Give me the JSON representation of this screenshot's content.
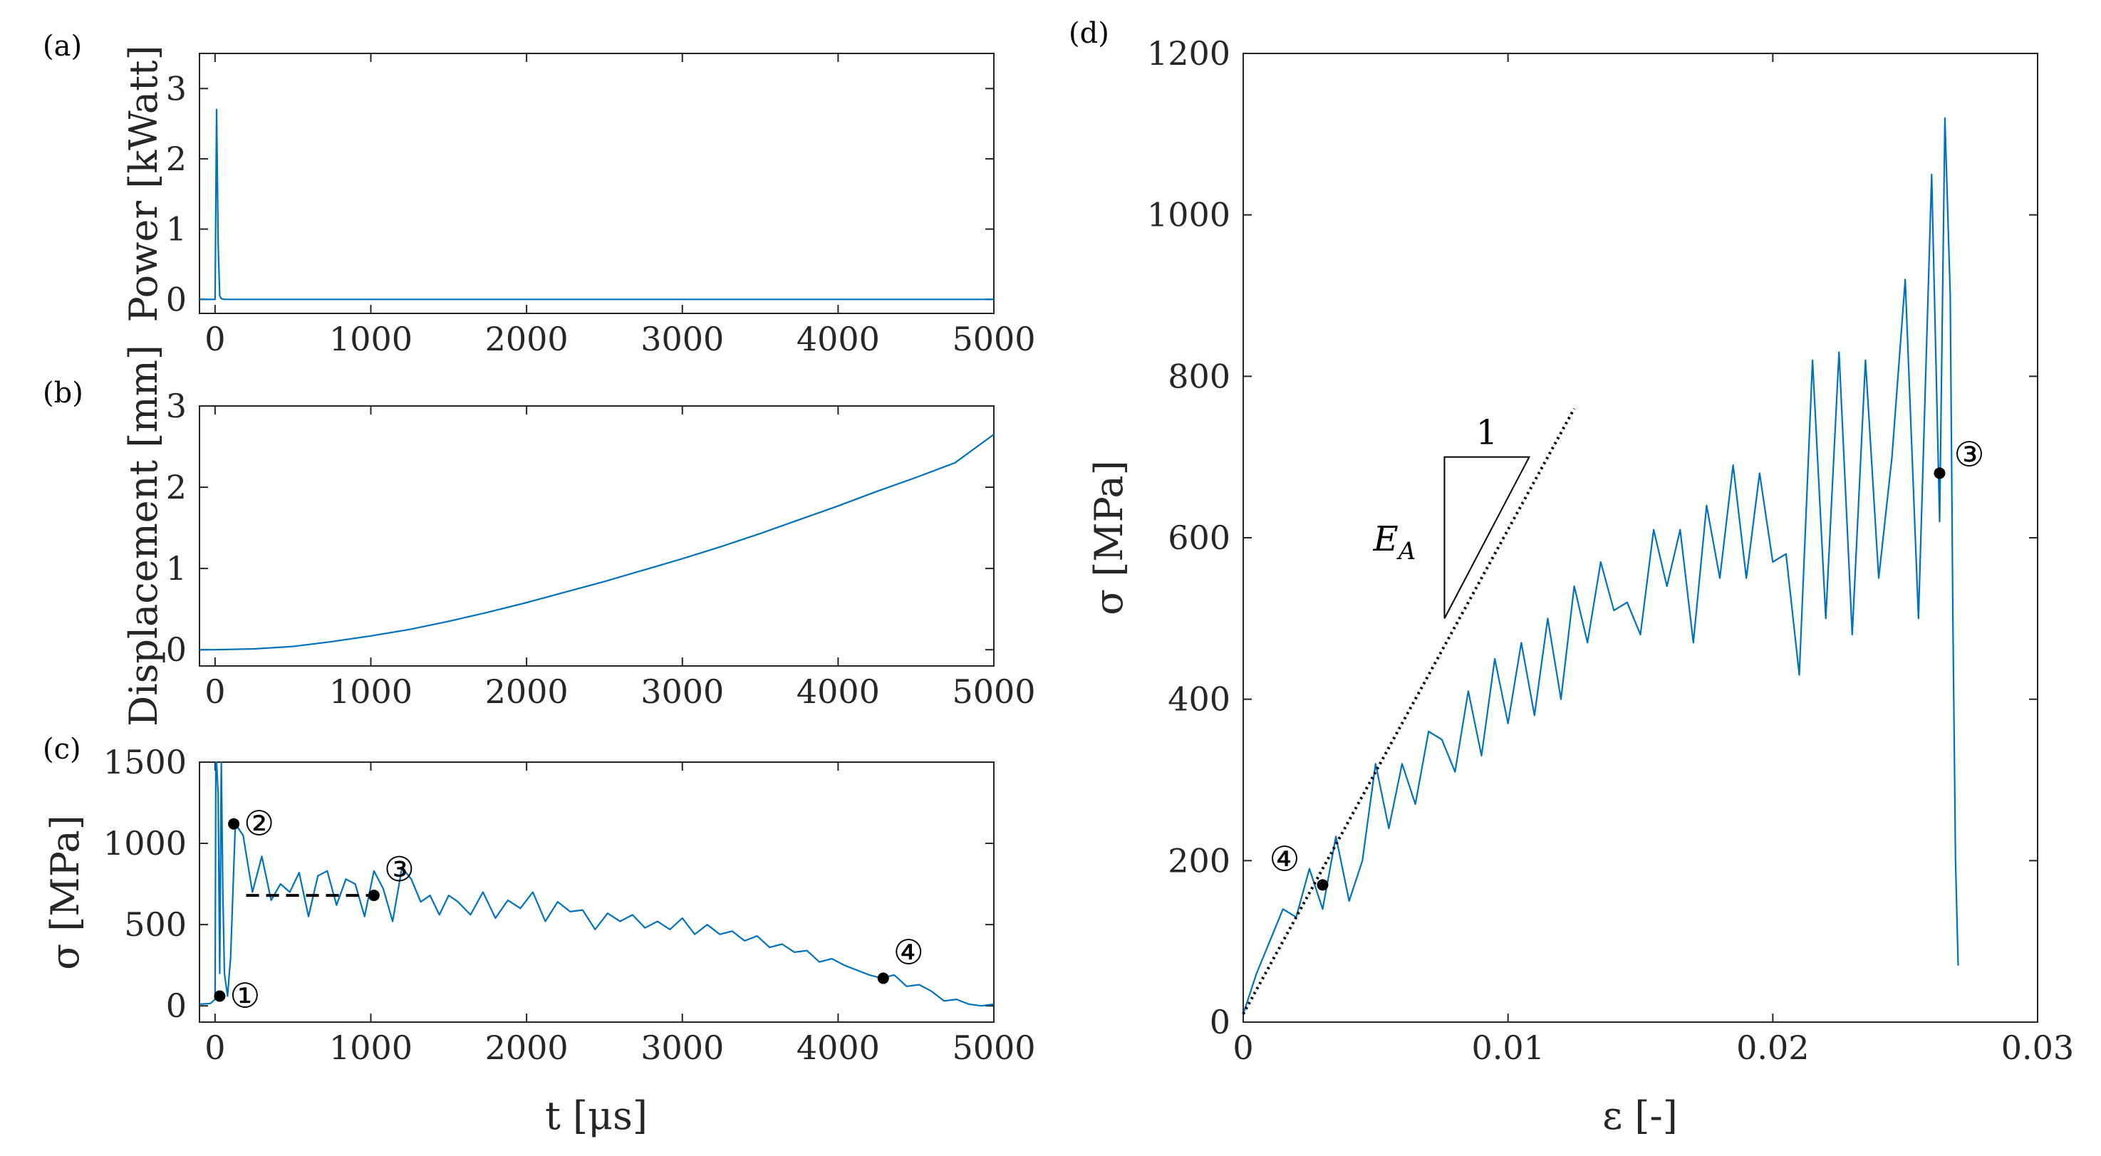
{
  "chart_data": [
    {
      "id": "a",
      "type": "line",
      "panel_label": "(a)",
      "xlabel": "",
      "ylabel": "Power [kWatt]",
      "xlim": [
        -100,
        5000
      ],
      "ylim": [
        -0.2,
        3.5
      ],
      "xticks": [
        0,
        1000,
        2000,
        3000,
        4000,
        5000
      ],
      "yticks": [
        0,
        1,
        2,
        3
      ],
      "series": [
        {
          "x": [
            -100,
            0,
            10,
            20,
            30,
            40,
            60,
            100,
            500,
            1000,
            2000,
            3000,
            4000,
            5000
          ],
          "y": [
            0,
            0,
            2.7,
            0.8,
            0.05,
            0.01,
            0,
            0,
            0,
            0,
            0,
            0,
            0,
            0
          ]
        }
      ],
      "color": "#0072BD"
    },
    {
      "id": "b",
      "type": "line",
      "panel_label": "(b)",
      "xlabel": "",
      "ylabel": "Displacement [mm]",
      "xlim": [
        -100,
        5000
      ],
      "ylim": [
        -0.2,
        3
      ],
      "xticks": [
        0,
        1000,
        2000,
        3000,
        4000,
        5000
      ],
      "yticks": [
        0,
        1,
        2,
        3
      ],
      "series": [
        {
          "x": [
            -100,
            0,
            250,
            500,
            750,
            1000,
            1250,
            1500,
            1750,
            2000,
            2250,
            2500,
            2750,
            3000,
            3250,
            3500,
            3750,
            4000,
            4250,
            4500,
            4750,
            5000
          ],
          "y": [
            0,
            0,
            0.01,
            0.04,
            0.1,
            0.17,
            0.25,
            0.35,
            0.46,
            0.58,
            0.71,
            0.84,
            0.98,
            1.12,
            1.27,
            1.43,
            1.6,
            1.77,
            1.95,
            2.12,
            2.3,
            2.65
          ]
        }
      ],
      "color": "#0072BD"
    },
    {
      "id": "c",
      "type": "line",
      "panel_label": "(c)",
      "xlabel": "t [μs]",
      "ylabel": "σ [MPa]",
      "xlim": [
        -100,
        5000
      ],
      "ylim": [
        -100,
        1500
      ],
      "xticks": [
        0,
        1000,
        2000,
        3000,
        4000,
        5000
      ],
      "yticks": [
        0,
        500,
        1000,
        1500
      ],
      "series": [
        {
          "x": [
            -100,
            -30,
            0,
            5,
            10,
            20,
            30,
            40,
            50,
            60,
            80,
            100,
            130,
            180,
            240,
            300,
            360,
            420,
            480,
            540,
            600,
            660,
            720,
            780,
            840,
            900,
            960,
            1020,
            1080,
            1140,
            1200,
            1260,
            1320,
            1380,
            1440,
            1500,
            1560,
            1640,
            1720,
            1800,
            1880,
            1960,
            2040,
            2120,
            2200,
            2280,
            2360,
            2440,
            2520,
            2600,
            2680,
            2760,
            2840,
            2920,
            3000,
            3080,
            3160,
            3240,
            3320,
            3400,
            3480,
            3560,
            3640,
            3720,
            3800,
            3880,
            3960,
            4040,
            4120,
            4200,
            4280,
            4360,
            4440,
            4520,
            4600,
            4680,
            4760,
            4840,
            4920,
            5000
          ],
          "y": [
            10,
            15,
            40,
            1500,
            1500,
            1300,
            200,
            1500,
            700,
            200,
            60,
            300,
            1120,
            1050,
            700,
            920,
            650,
            750,
            700,
            820,
            550,
            800,
            830,
            620,
            780,
            750,
            550,
            830,
            720,
            520,
            850,
            780,
            640,
            680,
            560,
            680,
            640,
            560,
            700,
            540,
            650,
            600,
            700,
            520,
            640,
            580,
            590,
            470,
            570,
            520,
            560,
            480,
            520,
            470,
            540,
            440,
            500,
            440,
            460,
            400,
            430,
            360,
            380,
            330,
            340,
            270,
            290,
            250,
            220,
            190,
            170,
            190,
            120,
            130,
            90,
            30,
            40,
            10,
            0,
            10
          ]
        }
      ],
      "dashed_line": {
        "x": [
          200,
          1020
        ],
        "y": [
          680,
          680
        ]
      },
      "markers": [
        {
          "label": "①",
          "x": 30,
          "y": 60
        },
        {
          "label": "②",
          "x": 120,
          "y": 1120
        },
        {
          "label": "③",
          "x": 1020,
          "y": 680
        },
        {
          "label": "④",
          "x": 4290,
          "y": 170
        }
      ],
      "color": "#0072BD"
    },
    {
      "id": "d",
      "type": "line",
      "panel_label": "(d)",
      "xlabel": "ε [-]",
      "ylabel": "σ [MPa]",
      "xlim": [
        0,
        0.03
      ],
      "ylim": [
        0,
        1200
      ],
      "xticks": [
        0,
        0.01,
        0.02,
        0.03
      ],
      "yticks": [
        0,
        200,
        400,
        600,
        800,
        1000,
        1200
      ],
      "series": [
        {
          "x": [
            0,
            0.0005,
            0.001,
            0.0015,
            0.002,
            0.0025,
            0.003,
            0.0035,
            0.004,
            0.0045,
            0.005,
            0.0055,
            0.006,
            0.0065,
            0.007,
            0.0075,
            0.008,
            0.0085,
            0.009,
            0.0095,
            0.01,
            0.0105,
            0.011,
            0.0115,
            0.012,
            0.0125,
            0.013,
            0.0135,
            0.014,
            0.0145,
            0.015,
            0.0155,
            0.016,
            0.0165,
            0.017,
            0.0175,
            0.018,
            0.0185,
            0.019,
            0.0195,
            0.02,
            0.0205,
            0.021,
            0.0215,
            0.022,
            0.0225,
            0.023,
            0.0235,
            0.024,
            0.0245,
            0.025,
            0.0255,
            0.026,
            0.0263,
            0.0265,
            0.0267,
            0.0268,
            0.0269,
            0.027
          ],
          "y": [
            10,
            60,
            100,
            140,
            130,
            190,
            140,
            230,
            150,
            200,
            320,
            240,
            320,
            270,
            360,
            350,
            310,
            410,
            330,
            450,
            370,
            470,
            380,
            500,
            400,
            540,
            470,
            570,
            510,
            520,
            480,
            610,
            540,
            610,
            470,
            640,
            550,
            690,
            550,
            680,
            570,
            580,
            430,
            820,
            500,
            830,
            480,
            820,
            550,
            700,
            920,
            500,
            1050,
            620,
            1120,
            900,
            500,
            200,
            70
          ]
        }
      ],
      "slope_line": {
        "x": [
          0,
          0.0125
        ],
        "y": [
          10,
          760
        ]
      },
      "slope_triangle": {
        "label_run": "1",
        "label_rise": "E_A"
      },
      "markers": [
        {
          "label": "④",
          "x": 0.003,
          "y": 170
        },
        {
          "label": "③",
          "x": 0.0263,
          "y": 680
        }
      ],
      "color": "#0072BD"
    }
  ]
}
